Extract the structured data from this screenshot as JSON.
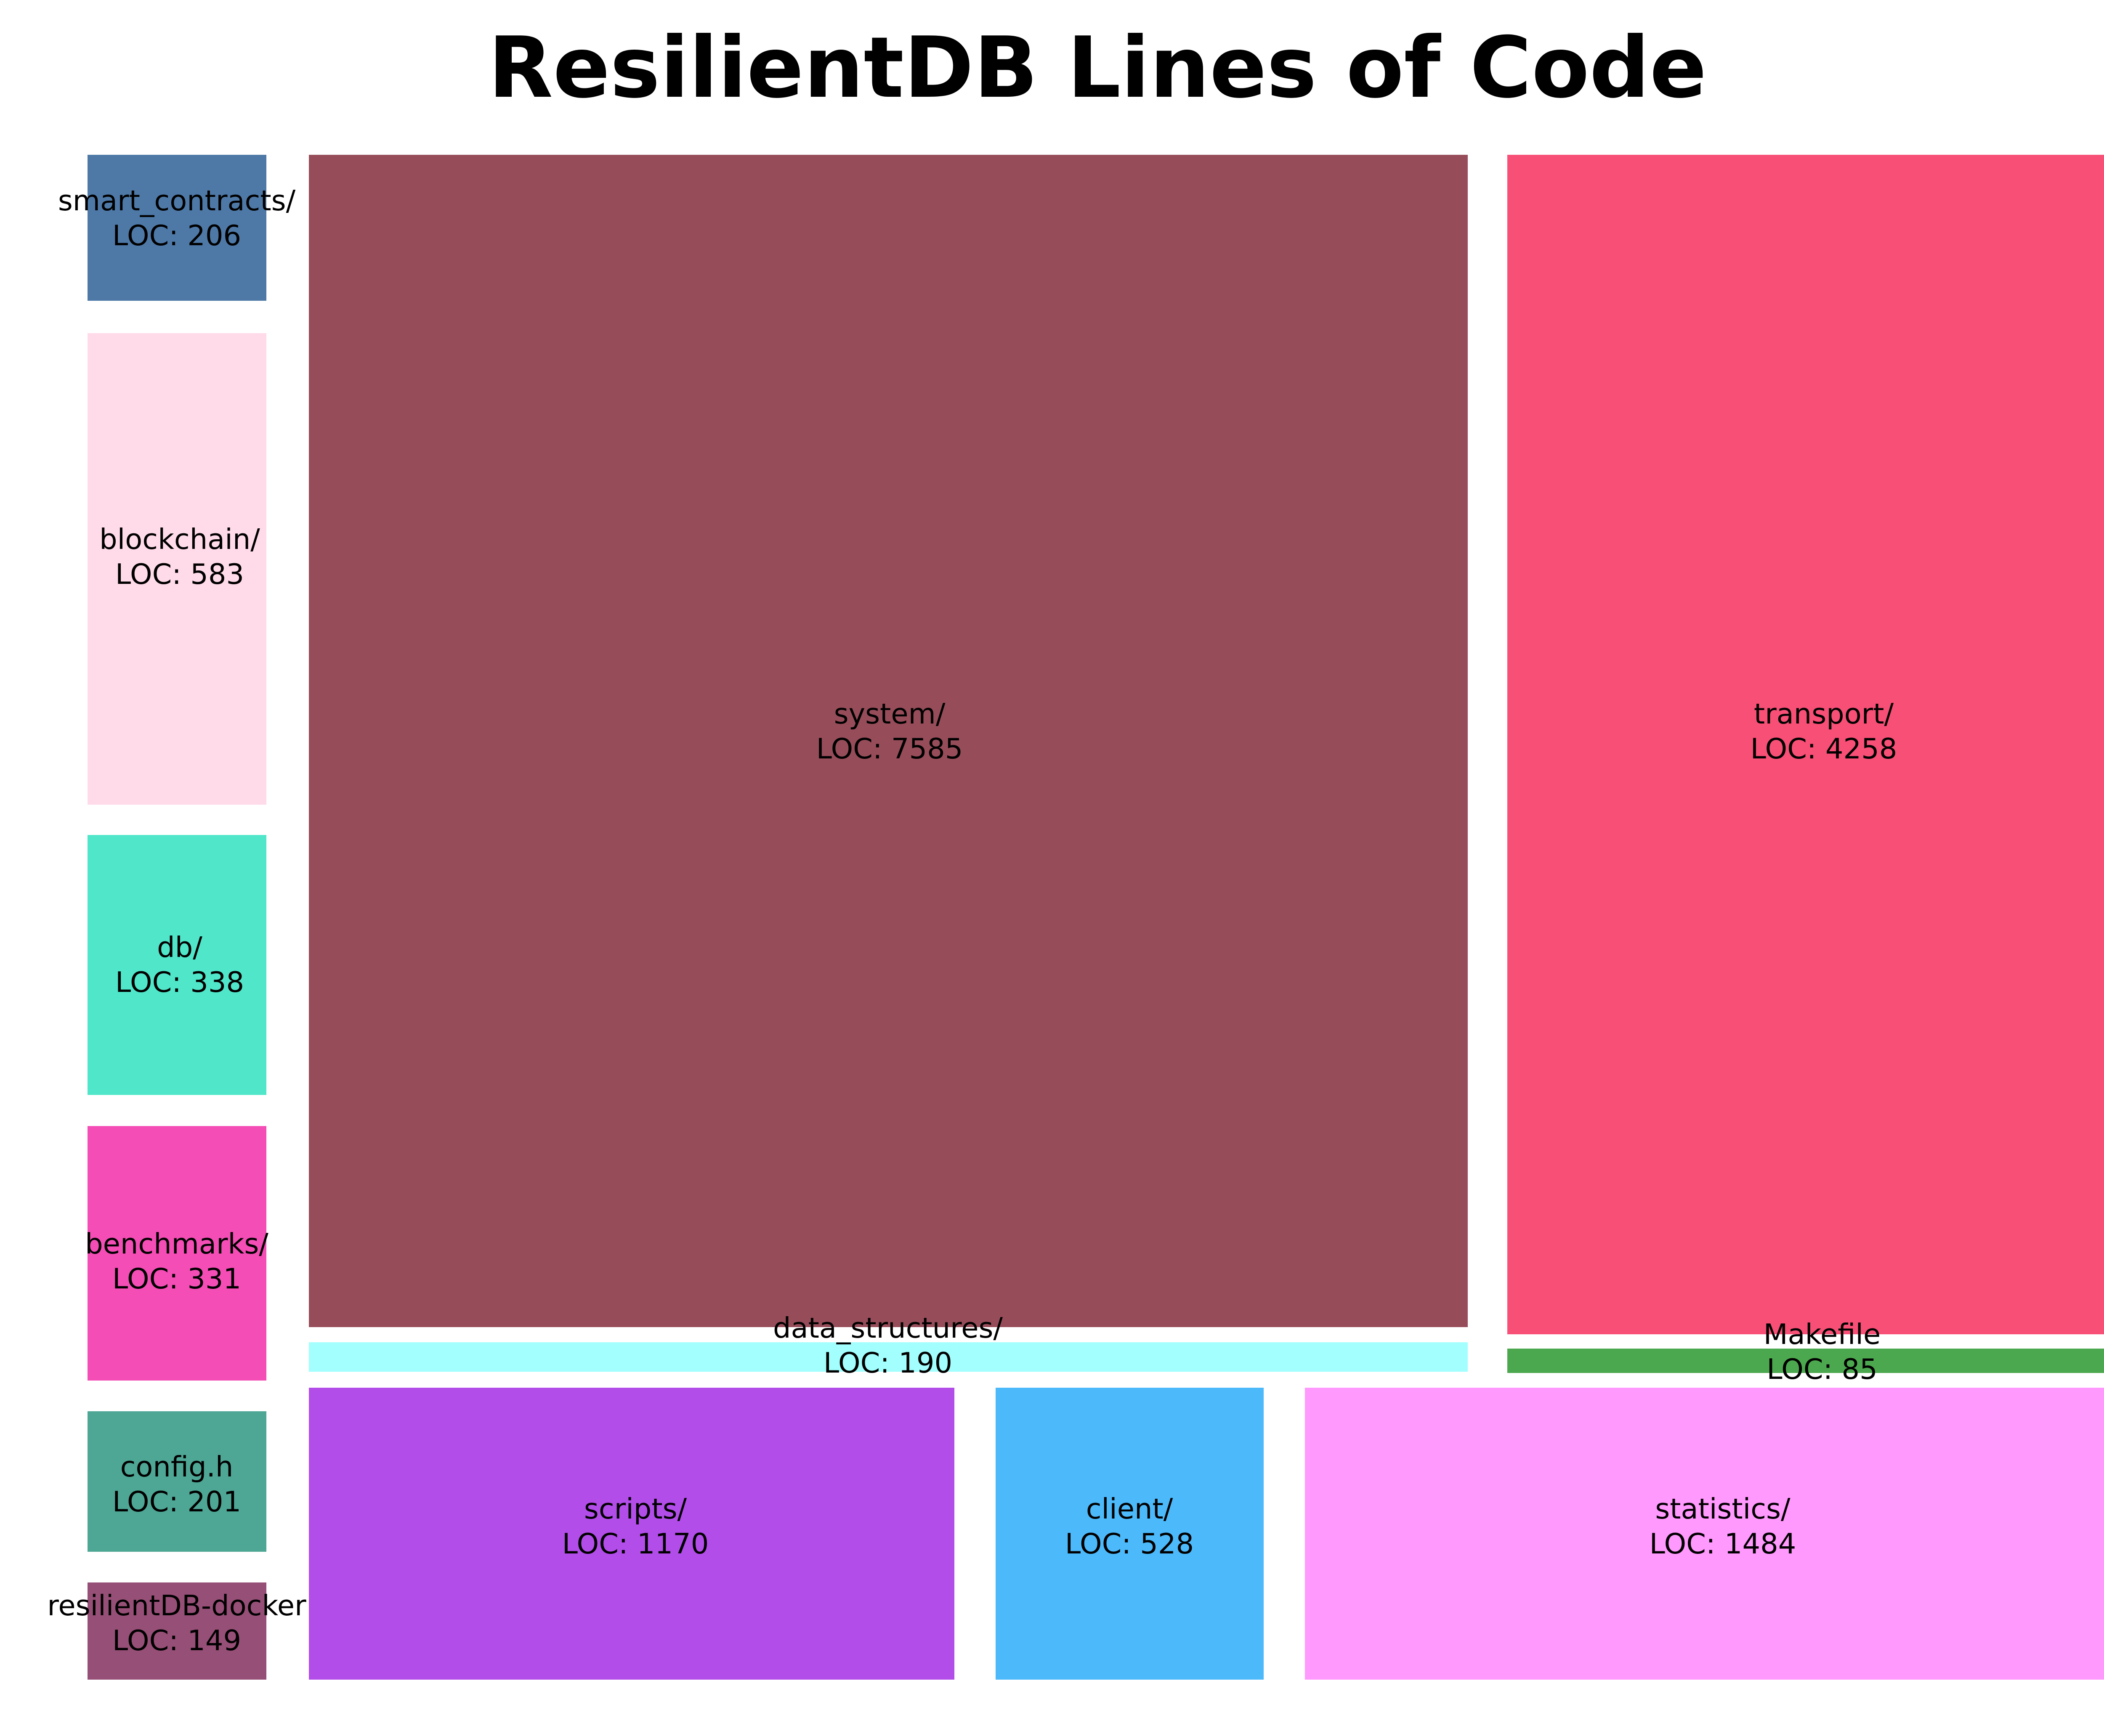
{
  "chart_data": {
    "type": "treemap",
    "title": "ResilientDB Lines of Code",
    "value_prefix": "LOC: ",
    "items": [
      {
        "name": "smart_contracts/",
        "value": 206,
        "color": "#4e79a7"
      },
      {
        "name": "blockchain/",
        "value": 583,
        "color": "#ffdbe9"
      },
      {
        "name": "db/",
        "value": 338,
        "color": "#4fe6c9"
      },
      {
        "name": "benchmarks/",
        "value": 331,
        "color": "#f44db5"
      },
      {
        "name": "config.h",
        "value": 201,
        "color": "#4ea695"
      },
      {
        "name": "resilientDB-docker",
        "value": 149,
        "color": "#964f76"
      },
      {
        "name": "system/",
        "value": 7585,
        "color": "#964d59"
      },
      {
        "name": "data_structures/",
        "value": 190,
        "color": "#a2fffd"
      },
      {
        "name": "scripts/",
        "value": 1170,
        "color": "#b24de9"
      },
      {
        "name": "client/",
        "value": 528,
        "color": "#4cb9fa"
      },
      {
        "name": "statistics/",
        "value": 1484,
        "color": "#ff99fd"
      },
      {
        "name": "transport/",
        "value": 4258,
        "color": "#f74f75"
      },
      {
        "name": "Makefile",
        "value": 85,
        "color": "#4ca84e"
      }
    ]
  }
}
